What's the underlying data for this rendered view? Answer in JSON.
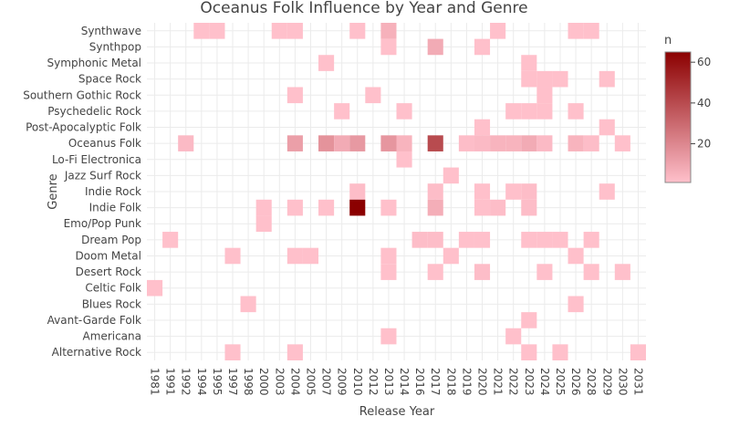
{
  "chart_data": {
    "type": "heatmap",
    "title": "Oceanus Folk Influence by Year and Genre",
    "xlabel": "Release Year",
    "ylabel": "Genre",
    "x": [
      "1981",
      "1991",
      "1992",
      "1994",
      "1995",
      "1997",
      "1998",
      "2000",
      "2003",
      "2004",
      "2005",
      "2007",
      "2009",
      "2010",
      "2012",
      "2013",
      "2014",
      "2016",
      "2017",
      "2018",
      "2019",
      "2020",
      "2021",
      "2022",
      "2023",
      "2024",
      "2025",
      "2026",
      "2028",
      "2029",
      "2030",
      "2031"
    ],
    "y": [
      "Alternative Rock",
      "Americana",
      "Avant-Garde Folk",
      "Blues Rock",
      "Celtic Folk",
      "Desert Rock",
      "Doom Metal",
      "Dream Pop",
      "Emo/Pop Punk",
      "Indie Folk",
      "Indie Rock",
      "Jazz Surf Rock",
      "Lo-Fi Electronica",
      "Oceanus Folk",
      "Post-Apocalyptic Folk",
      "Psychedelic Rock",
      "Southern Gothic Rock",
      "Space Rock",
      "Symphonic Metal",
      "Synthpop",
      "Synthwave"
    ],
    "cells": [
      [
        "1981",
        "Celtic Folk",
        1
      ],
      [
        "1991",
        "Dream Pop",
        1
      ],
      [
        "1992",
        "Oceanus Folk",
        3
      ],
      [
        "1994",
        "Synthwave",
        1
      ],
      [
        "1995",
        "Synthwave",
        1
      ],
      [
        "1997",
        "Doom Metal",
        1
      ],
      [
        "1997",
        "Alternative Rock",
        1
      ],
      [
        "1998",
        "Blues Rock",
        1
      ],
      [
        "2000",
        "Indie Folk",
        1
      ],
      [
        "2000",
        "Emo/Pop Punk",
        1
      ],
      [
        "2003",
        "Synthwave",
        1
      ],
      [
        "2004",
        "Synthwave",
        1
      ],
      [
        "2004",
        "Southern Gothic Rock",
        1
      ],
      [
        "2004",
        "Oceanus Folk",
        12
      ],
      [
        "2004",
        "Indie Folk",
        1
      ],
      [
        "2004",
        "Doom Metal",
        1
      ],
      [
        "2004",
        "Alternative Rock",
        1
      ],
      [
        "2005",
        "Doom Metal",
        1
      ],
      [
        "2007",
        "Symphonic Metal",
        1
      ],
      [
        "2007",
        "Oceanus Folk",
        16
      ],
      [
        "2007",
        "Indie Folk",
        1
      ],
      [
        "2009",
        "Psychedelic Rock",
        1
      ],
      [
        "2009",
        "Oceanus Folk",
        8
      ],
      [
        "2010",
        "Synthwave",
        1
      ],
      [
        "2010",
        "Oceanus Folk",
        14
      ],
      [
        "2010",
        "Indie Rock",
        2
      ],
      [
        "2010",
        "Indie Folk",
        65
      ],
      [
        "2012",
        "Southern Gothic Rock",
        1
      ],
      [
        "2013",
        "Synthwave",
        6
      ],
      [
        "2013",
        "Synthpop",
        1
      ],
      [
        "2013",
        "Oceanus Folk",
        15
      ],
      [
        "2013",
        "Indie Folk",
        1
      ],
      [
        "2013",
        "Doom Metal",
        1
      ],
      [
        "2013",
        "Desert Rock",
        1
      ],
      [
        "2013",
        "Americana",
        1
      ],
      [
        "2014",
        "Psychedelic Rock",
        1
      ],
      [
        "2014",
        "Oceanus Folk",
        5
      ],
      [
        "2014",
        "Lo-Fi Electronica",
        1
      ],
      [
        "2016",
        "Dream Pop",
        2
      ],
      [
        "2017",
        "Synthpop",
        8
      ],
      [
        "2017",
        "Oceanus Folk",
        40
      ],
      [
        "2017",
        "Indie Rock",
        2
      ],
      [
        "2017",
        "Indie Folk",
        7
      ],
      [
        "2017",
        "Dream Pop",
        2
      ],
      [
        "2017",
        "Desert Rock",
        1
      ],
      [
        "2018",
        "Jazz Surf Rock",
        1
      ],
      [
        "2018",
        "Doom Metal",
        1
      ],
      [
        "2019",
        "Oceanus Folk",
        2
      ],
      [
        "2019",
        "Dream Pop",
        1
      ],
      [
        "2020",
        "Synthpop",
        1
      ],
      [
        "2020",
        "Post-Apocalyptic Folk",
        1
      ],
      [
        "2020",
        "Oceanus Folk",
        3
      ],
      [
        "2020",
        "Indie Rock",
        1
      ],
      [
        "2020",
        "Indie Folk",
        1
      ],
      [
        "2020",
        "Dream Pop",
        1
      ],
      [
        "2020",
        "Desert Rock",
        2
      ],
      [
        "2021",
        "Synthwave",
        1
      ],
      [
        "2021",
        "Oceanus Folk",
        5
      ],
      [
        "2021",
        "Indie Folk",
        2
      ],
      [
        "2022",
        "Psychedelic Rock",
        1
      ],
      [
        "2022",
        "Oceanus Folk",
        5
      ],
      [
        "2022",
        "Indie Rock",
        1
      ],
      [
        "2022",
        "Americana",
        1
      ],
      [
        "2023",
        "Symphonic Metal",
        1
      ],
      [
        "2023",
        "Space Rock",
        1
      ],
      [
        "2023",
        "Psychedelic Rock",
        1
      ],
      [
        "2023",
        "Oceanus Folk",
        8
      ],
      [
        "2023",
        "Indie Rock",
        2
      ],
      [
        "2023",
        "Indie Folk",
        2
      ],
      [
        "2023",
        "Dream Pop",
        1
      ],
      [
        "2023",
        "Avant-Garde Folk",
        1
      ],
      [
        "2023",
        "Alternative Rock",
        1
      ],
      [
        "2024",
        "Space Rock",
        1
      ],
      [
        "2024",
        "Southern Gothic Rock",
        1
      ],
      [
        "2024",
        "Psychedelic Rock",
        1
      ],
      [
        "2024",
        "Oceanus Folk",
        3
      ],
      [
        "2024",
        "Dream Pop",
        1
      ],
      [
        "2024",
        "Desert Rock",
        1
      ],
      [
        "2025",
        "Space Rock",
        1
      ],
      [
        "2025",
        "Dream Pop",
        1
      ],
      [
        "2025",
        "Alternative Rock",
        1
      ],
      [
        "2026",
        "Synthwave",
        1
      ],
      [
        "2026",
        "Psychedelic Rock",
        1
      ],
      [
        "2026",
        "Oceanus Folk",
        5
      ],
      [
        "2026",
        "Doom Metal",
        1
      ],
      [
        "2026",
        "Blues Rock",
        1
      ],
      [
        "2028",
        "Synthwave",
        1
      ],
      [
        "2028",
        "Oceanus Folk",
        2
      ],
      [
        "2028",
        "Dream Pop",
        1
      ],
      [
        "2028",
        "Desert Rock",
        1
      ],
      [
        "2029",
        "Space Rock",
        1
      ],
      [
        "2029",
        "Post-Apocalyptic Folk",
        1
      ],
      [
        "2029",
        "Indie Rock",
        1
      ],
      [
        "2030",
        "Oceanus Folk",
        1
      ],
      [
        "2030",
        "Desert Rock",
        1
      ],
      [
        "2031",
        "Alternative Rock",
        1
      ]
    ],
    "colorbar": {
      "title": "n",
      "ticks": [
        20,
        40,
        60
      ],
      "range": [
        1,
        65
      ],
      "colors": [
        "#ffc0cb",
        "#8b0000"
      ]
    },
    "grid": true
  }
}
